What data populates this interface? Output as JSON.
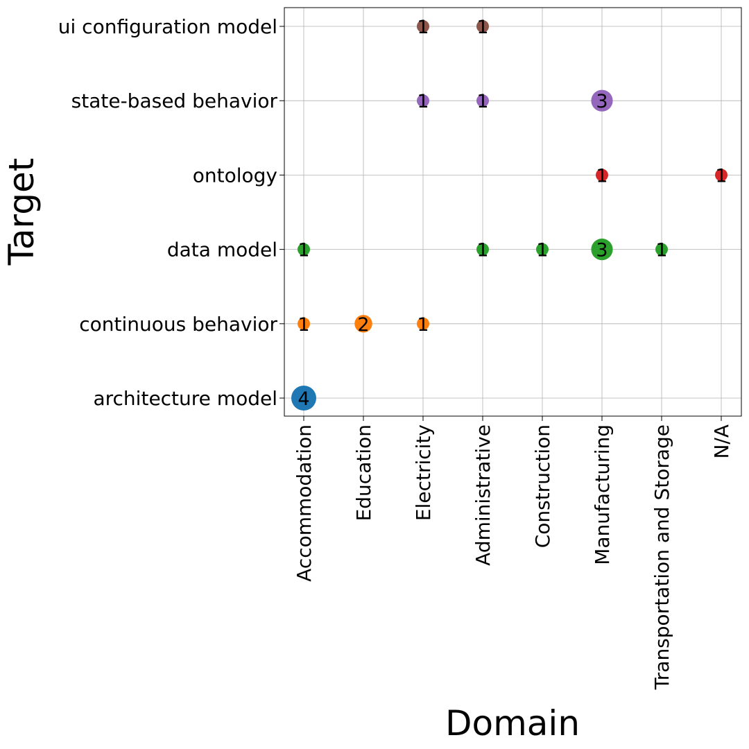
{
  "chart_data": {
    "type": "scatter",
    "xlabel": "Domain",
    "ylabel": "Target",
    "grid": true,
    "x_categories": [
      "Accommodation",
      "Education",
      "Electricity",
      "Administrative",
      "Construction",
      "Manufacturing",
      "Transportation and Storage",
      "N/A"
    ],
    "y_categories": [
      "architecture model",
      "continuous behavior",
      "data model",
      "ontology",
      "state-based behavior",
      "ui configuration model"
    ],
    "colors": {
      "architecture model": "#1f77b4",
      "continuous behavior": "#ff7f0e",
      "data model": "#2ca02c",
      "ontology": "#d62728",
      "state-based behavior": "#9467bd",
      "ui configuration model": "#8c564b"
    },
    "points": [
      {
        "x": "Accommodation",
        "y": "architecture model",
        "count": 4
      },
      {
        "x": "Accommodation",
        "y": "continuous behavior",
        "count": 1
      },
      {
        "x": "Education",
        "y": "continuous behavior",
        "count": 2
      },
      {
        "x": "Electricity",
        "y": "continuous behavior",
        "count": 1
      },
      {
        "x": "Accommodation",
        "y": "data model",
        "count": 1
      },
      {
        "x": "Administrative",
        "y": "data model",
        "count": 1
      },
      {
        "x": "Construction",
        "y": "data model",
        "count": 1
      },
      {
        "x": "Manufacturing",
        "y": "data model",
        "count": 3
      },
      {
        "x": "Transportation and Storage",
        "y": "data model",
        "count": 1
      },
      {
        "x": "Manufacturing",
        "y": "ontology",
        "count": 1
      },
      {
        "x": "N/A",
        "y": "ontology",
        "count": 1
      },
      {
        "x": "Electricity",
        "y": "state-based behavior",
        "count": 1
      },
      {
        "x": "Administrative",
        "y": "state-based behavior",
        "count": 1
      },
      {
        "x": "Manufacturing",
        "y": "state-based behavior",
        "count": 3
      },
      {
        "x": "Electricity",
        "y": "ui configuration model",
        "count": 1
      },
      {
        "x": "Administrative",
        "y": "ui configuration model",
        "count": 1
      }
    ]
  }
}
